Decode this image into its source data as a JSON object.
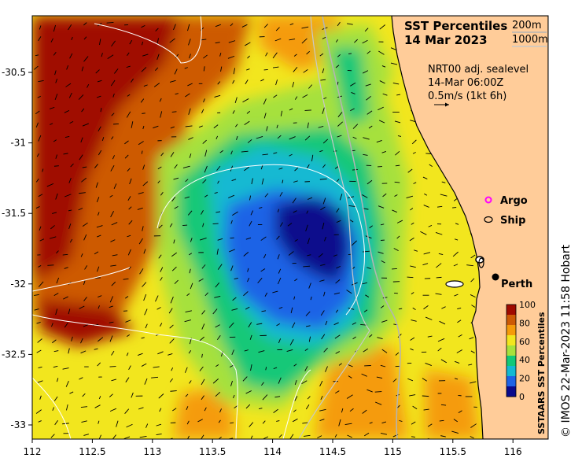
{
  "title_line1": "SST Percentiles",
  "title_line2": "14 Mar 2023",
  "isobath_200": "200m",
  "isobath_1000": "1000m",
  "current_source": "NRT00 adj. sealevel",
  "current_time": "14-Mar 06:00Z",
  "vector_scale": "0.5m/s (1kt 6h)",
  "legend_argo": "Argo",
  "legend_ship": "Ship",
  "city_label": "Perth",
  "colorbar_title": "SSTAARS SST Percentiles",
  "colorbar_ticks": [
    "100",
    "80",
    "60",
    "40",
    "20",
    "0"
  ],
  "colorbar_colors": [
    "#0a0a8c",
    "#1e63e6",
    "#14b9d2",
    "#12c878",
    "#a6e13c",
    "#f2e61e",
    "#f59b0a",
    "#cd5a05",
    "#a00a00"
  ],
  "x_ticks": [
    "112",
    "112.5",
    "113",
    "113.5",
    "114",
    "114.5",
    "115",
    "115.5",
    "116"
  ],
  "y_ticks": [
    "-30.5",
    "-31",
    "-31.5",
    "-32",
    "-32.5",
    "-33"
  ],
  "credit": "© IMOS 22-Mar-2023 11:58 Hobart",
  "land_color": "#ffcc99",
  "argo_color": "#ff00ff"
}
